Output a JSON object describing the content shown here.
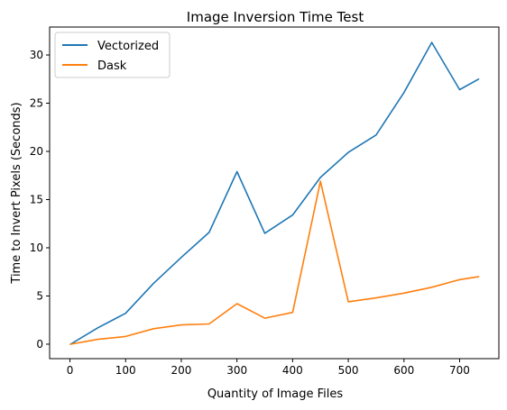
{
  "chart_data": {
    "type": "line",
    "title": "Image Inversion Time Test",
    "xlabel": "Quantity of Image Files",
    "ylabel": "Time to Invert Pixels (Seconds)",
    "xlim": [
      -36.5,
      770.5
    ],
    "ylim": [
      -1.5,
      32.9
    ],
    "xticks": [
      0,
      100,
      200,
      300,
      400,
      500,
      600,
      700
    ],
    "yticks": [
      0,
      5,
      10,
      15,
      20,
      25,
      30
    ],
    "grid": false,
    "legend_position": "top-left",
    "series": [
      {
        "name": "Vectorized",
        "color": "#1f77b4",
        "x": [
          1,
          50,
          100,
          150,
          200,
          250,
          300,
          350,
          400,
          450,
          500,
          550,
          600,
          650,
          700,
          734
        ],
        "y": [
          0.0,
          1.7,
          3.2,
          6.3,
          9.0,
          11.6,
          17.9,
          11.5,
          13.4,
          17.3,
          19.9,
          21.7,
          26.1,
          31.3,
          26.4,
          27.5
        ]
      },
      {
        "name": "Dask",
        "color": "#ff7f0e",
        "x": [
          1,
          50,
          100,
          150,
          200,
          250,
          300,
          350,
          400,
          450,
          500,
          550,
          600,
          650,
          700,
          734
        ],
        "y": [
          0.0,
          0.5,
          0.8,
          1.6,
          2.0,
          2.1,
          4.2,
          2.7,
          3.3,
          16.9,
          4.4,
          4.8,
          5.3,
          5.9,
          6.7,
          7.0
        ]
      }
    ]
  }
}
